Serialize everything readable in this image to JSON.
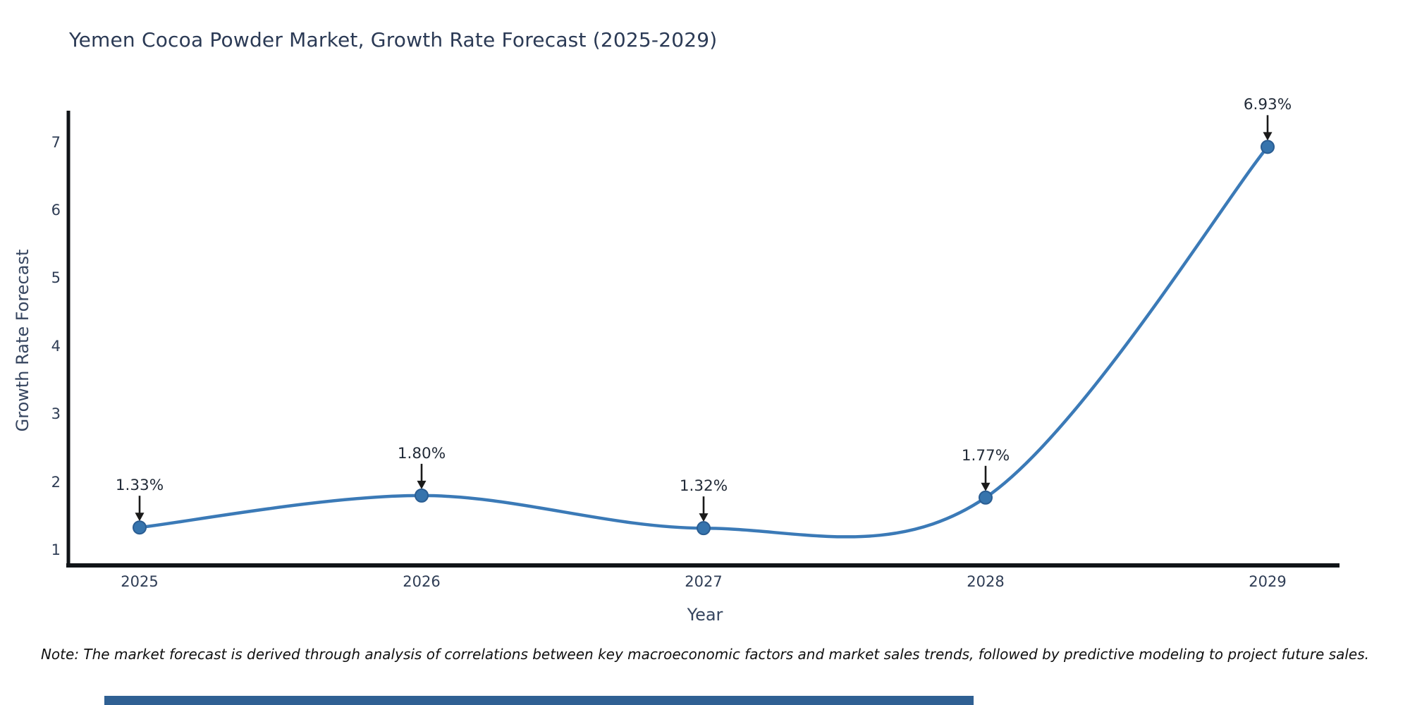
{
  "title": "Yemen Cocoa Powder Market, Growth Rate Forecast (2025-2029)",
  "note": "Note: The market forecast is derived through analysis of correlations between key macroeconomic factors and market sales trends, followed by predictive modeling to project future sales.",
  "chart_data": {
    "type": "line",
    "title": "Yemen Cocoa Powder Market, Growth Rate Forecast (2025-2029)",
    "xlabel": "Year",
    "ylabel": "Growth Rate Forecast",
    "categories": [
      "2025",
      "2026",
      "2027",
      "2028",
      "2029"
    ],
    "values": [
      1.33,
      1.8,
      1.32,
      1.77,
      6.93
    ],
    "point_labels": [
      "1.33%",
      "1.80%",
      "1.32%",
      "1.77%",
      "6.93%"
    ],
    "yticks": [
      1,
      2,
      3,
      4,
      5,
      6,
      7
    ],
    "ylim": [
      0.77,
      7.46
    ],
    "grid": false,
    "legend": "none",
    "smooth": true,
    "annotation_style": "down-arrow",
    "colors": {
      "line": "#3b7ab7",
      "marker_fill": "#3674ad",
      "marker_edge": "#2a5d92",
      "axis_spine": "#101418",
      "tick_label": "#2f3d55",
      "title": "#2b3a55",
      "axis_title": "#36455f",
      "annotation": "#1a1a1a",
      "footer_bar": "#2f6093"
    }
  }
}
